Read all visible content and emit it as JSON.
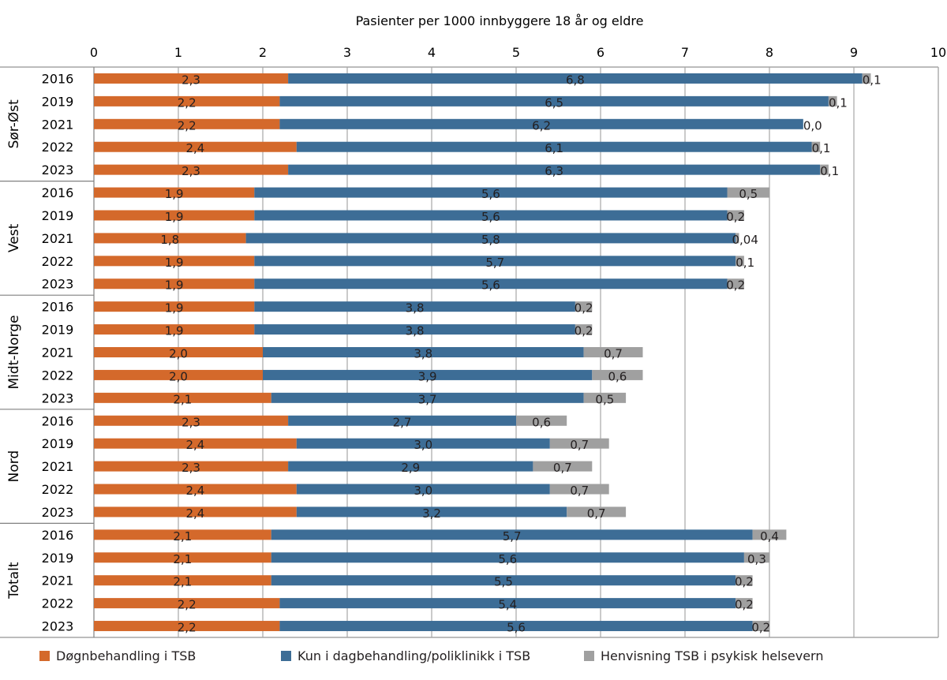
{
  "chart_data": {
    "type": "bar",
    "orientation": "horizontal",
    "stacked": true,
    "title": "",
    "xlabel": "Pasienter per 1000 innbyggere 18 år og eldre",
    "ylabel": "",
    "xlim": [
      0,
      10
    ],
    "x_ticks": [
      "0",
      "1",
      "2",
      "3",
      "4",
      "5",
      "6",
      "7",
      "8",
      "9",
      "10"
    ],
    "grid": true,
    "legend_position": "bottom",
    "groups": [
      {
        "name": "Sør-Øst",
        "years": [
          "2016",
          "2019",
          "2021",
          "2022",
          "2023"
        ]
      },
      {
        "name": "Vest",
        "years": [
          "2016",
          "2019",
          "2021",
          "2022",
          "2023"
        ]
      },
      {
        "name": "Midt-Norge",
        "years": [
          "2016",
          "2019",
          "2021",
          "2022",
          "2023"
        ]
      },
      {
        "name": "Nord",
        "years": [
          "2016",
          "2019",
          "2021",
          "2022",
          "2023"
        ]
      },
      {
        "name": "Totalt",
        "years": [
          "2016",
          "2019",
          "2021",
          "2022",
          "2023"
        ]
      }
    ],
    "series": [
      {
        "name": "Døgnbehandling i TSB",
        "color": "#d4692b",
        "values": [
          2.3,
          2.2,
          2.2,
          2.4,
          2.3,
          1.9,
          1.9,
          1.8,
          1.9,
          1.9,
          1.9,
          1.9,
          2.0,
          2.0,
          2.1,
          2.3,
          2.4,
          2.3,
          2.4,
          2.4,
          2.1,
          2.1,
          2.1,
          2.2,
          2.2
        ],
        "labels": [
          "2,3",
          "2,2",
          "2,2",
          "2,4",
          "2,3",
          "1,9",
          "1,9",
          "1,8",
          "1,9",
          "1,9",
          "1,9",
          "1,9",
          "2,0",
          "2,0",
          "2,1",
          "2,3",
          "2,4",
          "2,3",
          "2,4",
          "2,4",
          "2,1",
          "2,1",
          "2,1",
          "2,2",
          "2,2"
        ]
      },
      {
        "name": "Kun i dagbehandling/poliklinikk i TSB",
        "color": "#3d6d96",
        "values": [
          6.8,
          6.5,
          6.2,
          6.1,
          6.3,
          5.6,
          5.6,
          5.8,
          5.7,
          5.6,
          3.8,
          3.8,
          3.8,
          3.9,
          3.7,
          2.7,
          3.0,
          2.9,
          3.0,
          3.2,
          5.7,
          5.6,
          5.5,
          5.4,
          5.6
        ],
        "labels": [
          "6,8",
          "6,5",
          "6,2",
          "6,1",
          "6,3",
          "5,6",
          "5,6",
          "5,8",
          "5,7",
          "5,6",
          "3,8",
          "3,8",
          "3,8",
          "3,9",
          "3,7",
          "2,7",
          "3,0",
          "2,9",
          "3,0",
          "3,2",
          "5,7",
          "5,6",
          "5,5",
          "5,4",
          "5,6"
        ]
      },
      {
        "name": "Henvisning TSB i psykisk helsevern",
        "color": "#a0a0a0",
        "values": [
          0.1,
          0.1,
          0.0,
          0.1,
          0.1,
          0.5,
          0.2,
          0.04,
          0.1,
          0.2,
          0.2,
          0.2,
          0.7,
          0.6,
          0.5,
          0.6,
          0.7,
          0.7,
          0.7,
          0.7,
          0.4,
          0.3,
          0.2,
          0.2,
          0.2
        ],
        "labels": [
          "0,1",
          "0,1",
          "0,0",
          "0,1",
          "0,1",
          "0,5",
          "0,2",
          "0,04",
          "0,1",
          "0,2",
          "0,2",
          "0,2",
          "0,7",
          "0,6",
          "0,5",
          "0,6",
          "0,7",
          "0,7",
          "0,7",
          "0,7",
          "0,4",
          "0,3",
          "0,2",
          "0,2",
          "0,2"
        ]
      }
    ]
  },
  "legend": {
    "items": [
      {
        "label": "Døgnbehandling i TSB",
        "color": "#d4692b"
      },
      {
        "label": "Kun i dagbehandling/poliklinikk i TSB",
        "color": "#3d6d96"
      },
      {
        "label": "Henvisning TSB i psykisk helsevern",
        "color": "#a0a0a0"
      }
    ]
  }
}
